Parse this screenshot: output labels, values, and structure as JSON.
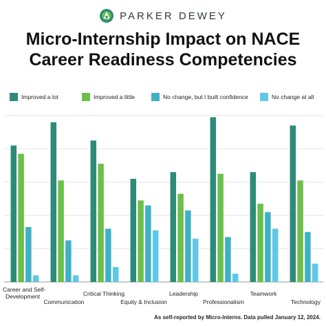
{
  "brand": {
    "name": "PARKER DEWEY",
    "logo_icon": "parker-dewey-logo-icon"
  },
  "title_lines": [
    "Micro-Internship Impact on NACE",
    "Career Readiness Competencies"
  ],
  "footnote": "As self-reported by Micro-Interns. Data pulled January 12, 2024.",
  "chart_data": {
    "type": "bar",
    "title": "Micro-Internship Impact on NACE Career Readiness Competencies",
    "grid": true,
    "legend_placement": "top",
    "ylim": [
      0,
      100
    ],
    "categories": [
      "Career and Self-Development",
      "Communication",
      "Critical Thinking",
      "Equity & Inclusion",
      "Leadership",
      "Professionalism",
      "Teamwork",
      "Technology"
    ],
    "series": [
      {
        "name": "Improved a lot",
        "color": "#2e8b7a",
        "values": [
          82,
          96,
          85,
          62,
          66,
          99,
          66,
          94
        ]
      },
      {
        "name": "Improved a little",
        "color": "#6cc04a",
        "values": [
          77,
          61,
          71,
          49,
          53,
          65,
          47,
          61
        ]
      },
      {
        "name": "No change, but I built confidence",
        "color": "#3fb1c5",
        "values": [
          33,
          25,
          32,
          46,
          43,
          27,
          42,
          30
        ]
      },
      {
        "name": "No change at all",
        "color": "#5fc8e6",
        "values": [
          4,
          4,
          9,
          31,
          26,
          5,
          32,
          11
        ]
      }
    ]
  }
}
